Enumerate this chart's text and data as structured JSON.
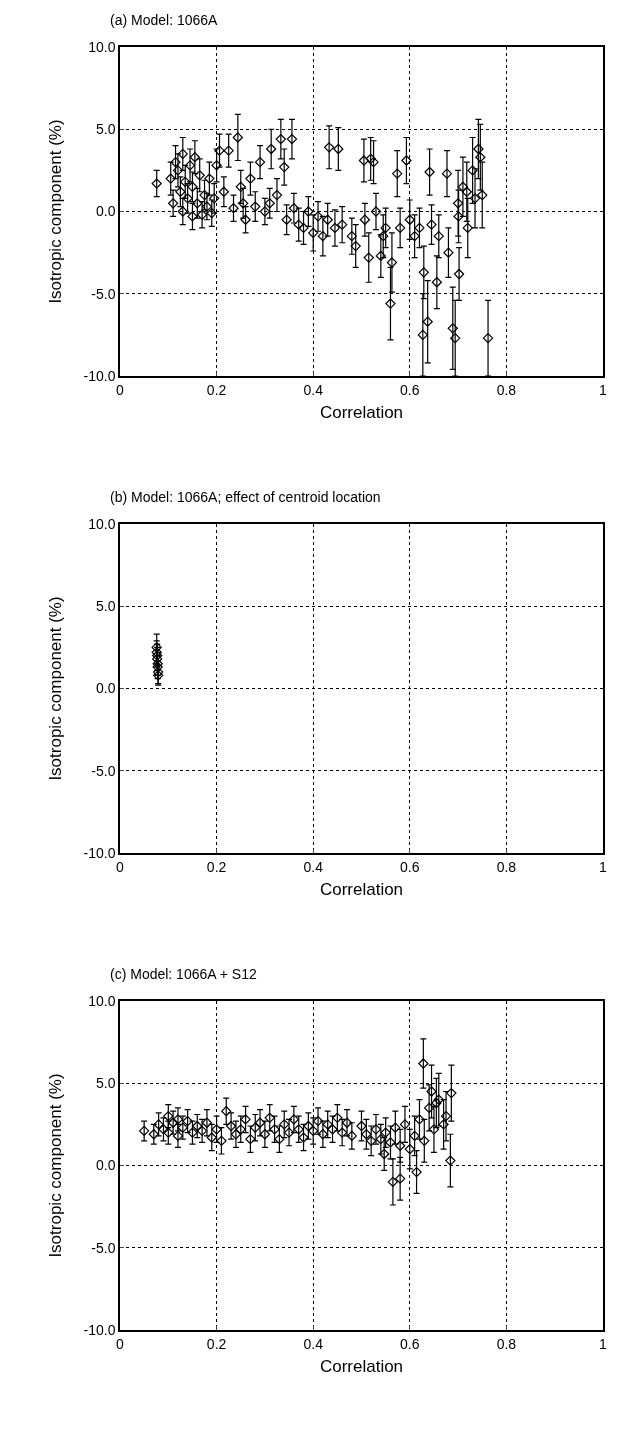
{
  "chart_data": [
    {
      "type": "scatter",
      "title": "(a) Model: 1066A",
      "xlabel": "Correlation",
      "ylabel": "Isotropic component (%)",
      "marker": "diamond",
      "grid": true,
      "xlim": [
        0,
        1
      ],
      "xticks": [
        0,
        0.2,
        0.4,
        0.6,
        0.8,
        1
      ],
      "ylim": [
        -10,
        10
      ],
      "yticks": [
        {
          "value": -10,
          "label": "-10.0"
        },
        {
          "value": -5,
          "label": "-5.0"
        },
        {
          "value": 0,
          "label": "0.0"
        },
        {
          "value": 5,
          "label": "5.0"
        },
        {
          "value": 10,
          "label": "10.0"
        }
      ],
      "series": [
        {
          "color": "#000000",
          "x": [
            0.076,
            0.105,
            0.11,
            0.115,
            0.12,
            0.125,
            0.13,
            0.13,
            0.135,
            0.14,
            0.145,
            0.15,
            0.15,
            0.155,
            0.16,
            0.165,
            0.17,
            0.175,
            0.18,
            0.185,
            0.19,
            0.195,
            0.2,
            0.206,
            0.215,
            0.225,
            0.235,
            0.244,
            0.25,
            0.255,
            0.26,
            0.27,
            0.28,
            0.29,
            0.3,
            0.31,
            0.313,
            0.325,
            0.333,
            0.34,
            0.345,
            0.356,
            0.36,
            0.37,
            0.38,
            0.39,
            0.4,
            0.41,
            0.42,
            0.43,
            0.433,
            0.445,
            0.452,
            0.46,
            0.48,
            0.488,
            0.505,
            0.507,
            0.515,
            0.519,
            0.525,
            0.53,
            0.54,
            0.545,
            0.55,
            0.56,
            0.563,
            0.574,
            0.58,
            0.593,
            0.6,
            0.61,
            0.62,
            0.627,
            0.629,
            0.637,
            0.641,
            0.645,
            0.656,
            0.66,
            0.677,
            0.68,
            0.689,
            0.694,
            0.7,
            0.701,
            0.702,
            0.71,
            0.718,
            0.72,
            0.73,
            0.735,
            0.742,
            0.746,
            0.75,
            0.762
          ],
          "values": [
            1.7,
            2.0,
            0.5,
            3.0,
            2.5,
            1.2,
            0.0,
            3.5,
            1.8,
            0.8,
            2.8,
            -0.3,
            1.5,
            3.3,
            0.5,
            2.2,
            -0.2,
            1.0,
            0.3,
            2.0,
            -0.1,
            0.8,
            2.8,
            3.7,
            1.2,
            3.7,
            0.2,
            4.5,
            1.5,
            0.5,
            -0.5,
            2.0,
            0.3,
            3.0,
            0.0,
            0.5,
            3.8,
            1.0,
            4.4,
            2.7,
            -0.5,
            4.4,
            0.2,
            -0.8,
            -1.0,
            0.0,
            -1.3,
            -0.3,
            -1.5,
            -0.5,
            3.9,
            -1.0,
            3.8,
            -0.8,
            -1.5,
            -2.1,
            3.1,
            -0.5,
            -2.8,
            3.2,
            3.0,
            0.0,
            -2.7,
            -1.5,
            -1.0,
            -5.6,
            -3.1,
            2.3,
            -1.0,
            3.1,
            -0.5,
            -1.5,
            -1.0,
            -7.5,
            -3.7,
            -6.7,
            2.4,
            -0.8,
            -4.3,
            -1.5,
            2.3,
            -2.5,
            -7.1,
            -7.7,
            0.5,
            -0.3,
            -3.8,
            1.5,
            1.2,
            -1.0,
            2.5,
            0.8,
            3.8,
            3.3,
            1.0,
            -7.7
          ],
          "errors": [
            0.8,
            1.0,
            0.8,
            1.0,
            1.0,
            0.9,
            0.8,
            1.0,
            1.0,
            0.9,
            1.0,
            0.8,
            0.9,
            1.0,
            0.9,
            1.0,
            0.8,
            0.9,
            0.8,
            1.0,
            0.8,
            0.9,
            1.0,
            1.0,
            0.9,
            1.0,
            0.8,
            1.4,
            1.0,
            0.9,
            0.8,
            1.0,
            0.9,
            1.0,
            0.8,
            0.9,
            1.2,
            1.0,
            1.2,
            1.1,
            0.9,
            1.2,
            0.9,
            1.0,
            1.0,
            0.9,
            1.1,
            0.9,
            1.2,
            1.0,
            1.3,
            1.1,
            1.3,
            1.1,
            1.1,
            1.3,
            1.3,
            1.0,
            1.5,
            1.3,
            1.3,
            1.1,
            1.3,
            1.3,
            1.2,
            2.2,
            1.8,
            1.4,
            1.2,
            1.4,
            1.2,
            1.3,
            1.2,
            2.5,
            1.6,
            2.5,
            1.4,
            1.2,
            1.6,
            1.3,
            1.4,
            1.5,
            2.5,
            2.3,
            2.0,
            1.6,
            1.6,
            1.8,
            1.8,
            1.8,
            2.0,
            1.8,
            1.8,
            2.0,
            2.0,
            2.3
          ]
        }
      ]
    },
    {
      "type": "scatter",
      "title": "(b) Model: 1066A; effect of centroid location",
      "xlabel": "Correlation",
      "ylabel": "Isotropic component (%)",
      "marker": "diamond",
      "grid": true,
      "xlim": [
        0,
        1
      ],
      "xticks": [
        0,
        0.2,
        0.4,
        0.6,
        0.8,
        1
      ],
      "ylim": [
        -10,
        10
      ],
      "yticks": [
        {
          "value": -10,
          "label": "-10.0"
        },
        {
          "value": -5,
          "label": "-5.0"
        },
        {
          "value": 0,
          "label": "0.0"
        },
        {
          "value": 5,
          "label": "5.0"
        },
        {
          "value": 10,
          "label": "10.0"
        }
      ],
      "series": [
        {
          "color": "#000000",
          "x": [
            0.076,
            0.076,
            0.077,
            0.077,
            0.078,
            0.078,
            0.079,
            0.079
          ],
          "values": [
            2.5,
            2.2,
            2.0,
            1.8,
            1.5,
            1.3,
            1.0,
            0.8
          ],
          "errors": [
            0.8,
            0.7,
            0.7,
            0.7,
            0.7,
            0.7,
            0.7,
            0.6
          ]
        }
      ]
    },
    {
      "type": "scatter",
      "title": "(c) Model: 1066A + S12",
      "xlabel": "Correlation",
      "ylabel": "Isotropic component (%)",
      "marker": "diamond",
      "grid": true,
      "xlim": [
        0,
        1
      ],
      "xticks": [
        0,
        0.2,
        0.4,
        0.6,
        0.8,
        1
      ],
      "ylim": [
        -10,
        10
      ],
      "yticks": [
        {
          "value": -10,
          "label": "-10.0"
        },
        {
          "value": -5,
          "label": "-5.0"
        },
        {
          "value": 0,
          "label": "0.0"
        },
        {
          "value": 5,
          "label": "5.0"
        },
        {
          "value": 10,
          "label": "10.0"
        }
      ],
      "series": [
        {
          "color": "#000000",
          "x": [
            0.05,
            0.07,
            0.08,
            0.09,
            0.1,
            0.1,
            0.11,
            0.12,
            0.12,
            0.13,
            0.14,
            0.15,
            0.16,
            0.17,
            0.18,
            0.19,
            0.2,
            0.21,
            0.22,
            0.23,
            0.24,
            0.25,
            0.26,
            0.27,
            0.28,
            0.29,
            0.3,
            0.31,
            0.32,
            0.33,
            0.34,
            0.35,
            0.36,
            0.37,
            0.38,
            0.39,
            0.4,
            0.41,
            0.42,
            0.43,
            0.44,
            0.45,
            0.46,
            0.47,
            0.48,
            0.5,
            0.51,
            0.52,
            0.53,
            0.54,
            0.547,
            0.55,
            0.56,
            0.565,
            0.57,
            0.58,
            0.58,
            0.59,
            0.6,
            0.61,
            0.614,
            0.62,
            0.628,
            0.63,
            0.64,
            0.645,
            0.65,
            0.655,
            0.66,
            0.67,
            0.675,
            0.684,
            0.686
          ],
          "values": [
            2.1,
            1.9,
            2.5,
            2.2,
            3.0,
            2.0,
            2.6,
            1.8,
            2.8,
            2.3,
            2.7,
            2.0,
            2.4,
            2.1,
            2.6,
            1.7,
            2.2,
            1.5,
            3.3,
            2.4,
            1.9,
            2.2,
            2.8,
            1.6,
            2.3,
            2.6,
            1.9,
            2.9,
            2.2,
            1.6,
            2.5,
            2.0,
            2.8,
            2.2,
            1.7,
            2.4,
            2.1,
            2.7,
            1.9,
            2.5,
            2.2,
            2.9,
            2.0,
            2.6,
            1.8,
            2.4,
            1.9,
            1.5,
            2.2,
            1.6,
            0.7,
            2.0,
            1.4,
            -1.0,
            2.3,
            -0.8,
            1.2,
            2.5,
            1.0,
            1.8,
            -0.4,
            2.8,
            6.2,
            1.5,
            3.5,
            4.5,
            2.2,
            3.8,
            4.0,
            2.5,
            3.0,
            0.3,
            4.4
          ],
          "errors": [
            0.6,
            0.6,
            0.7,
            0.7,
            0.7,
            0.7,
            0.7,
            0.7,
            0.7,
            0.7,
            0.7,
            0.7,
            0.7,
            0.7,
            0.8,
            0.8,
            0.8,
            0.8,
            0.8,
            0.8,
            0.8,
            0.8,
            0.8,
            0.8,
            0.8,
            0.8,
            0.8,
            0.8,
            0.8,
            0.8,
            0.8,
            0.8,
            0.8,
            0.8,
            0.8,
            0.8,
            0.8,
            0.8,
            0.8,
            0.8,
            0.8,
            0.8,
            0.8,
            0.8,
            0.8,
            0.9,
            0.9,
            0.9,
            0.9,
            0.9,
            1.0,
            0.9,
            1.0,
            1.4,
            1.0,
            1.3,
            1.0,
            1.1,
            1.2,
            1.2,
            1.3,
            1.2,
            1.5,
            1.3,
            1.4,
            1.6,
            1.4,
            1.5,
            1.6,
            1.5,
            1.5,
            1.6,
            1.7
          ]
        }
      ]
    }
  ]
}
